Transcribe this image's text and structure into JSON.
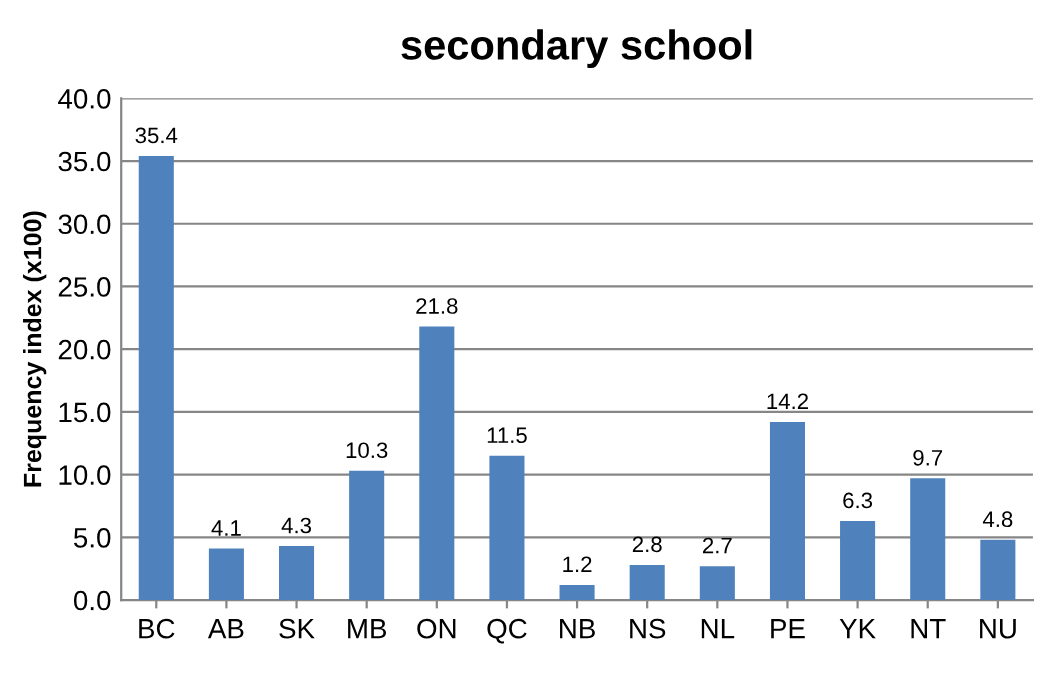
{
  "chart_data": {
    "type": "bar",
    "title": "secondary school",
    "ylabel": "Frequency index (x100)",
    "categories": [
      "BC",
      "AB",
      "SK",
      "MB",
      "ON",
      "QC",
      "NB",
      "NS",
      "NL",
      "PE",
      "YK",
      "NT",
      "NU"
    ],
    "values": [
      35.4,
      4.1,
      4.3,
      10.3,
      21.8,
      11.5,
      1.2,
      2.8,
      2.7,
      14.2,
      6.3,
      9.7,
      4.8
    ],
    "color": "#4f81bd",
    "ylim": [
      0,
      40
    ],
    "yticks": [
      {
        "value": 0,
        "label": "0.0"
      },
      {
        "value": 5,
        "label": "5.0"
      },
      {
        "value": 10,
        "label": "10.0"
      },
      {
        "value": 15,
        "label": "15.0"
      },
      {
        "value": 20,
        "label": "20.0"
      },
      {
        "value": 25,
        "label": "25.0"
      },
      {
        "value": 30,
        "label": "30.0"
      },
      {
        "value": 35,
        "label": "35.0"
      },
      {
        "value": 40,
        "label": "40.0"
      }
    ],
    "grid": "y",
    "data_labels": true
  }
}
